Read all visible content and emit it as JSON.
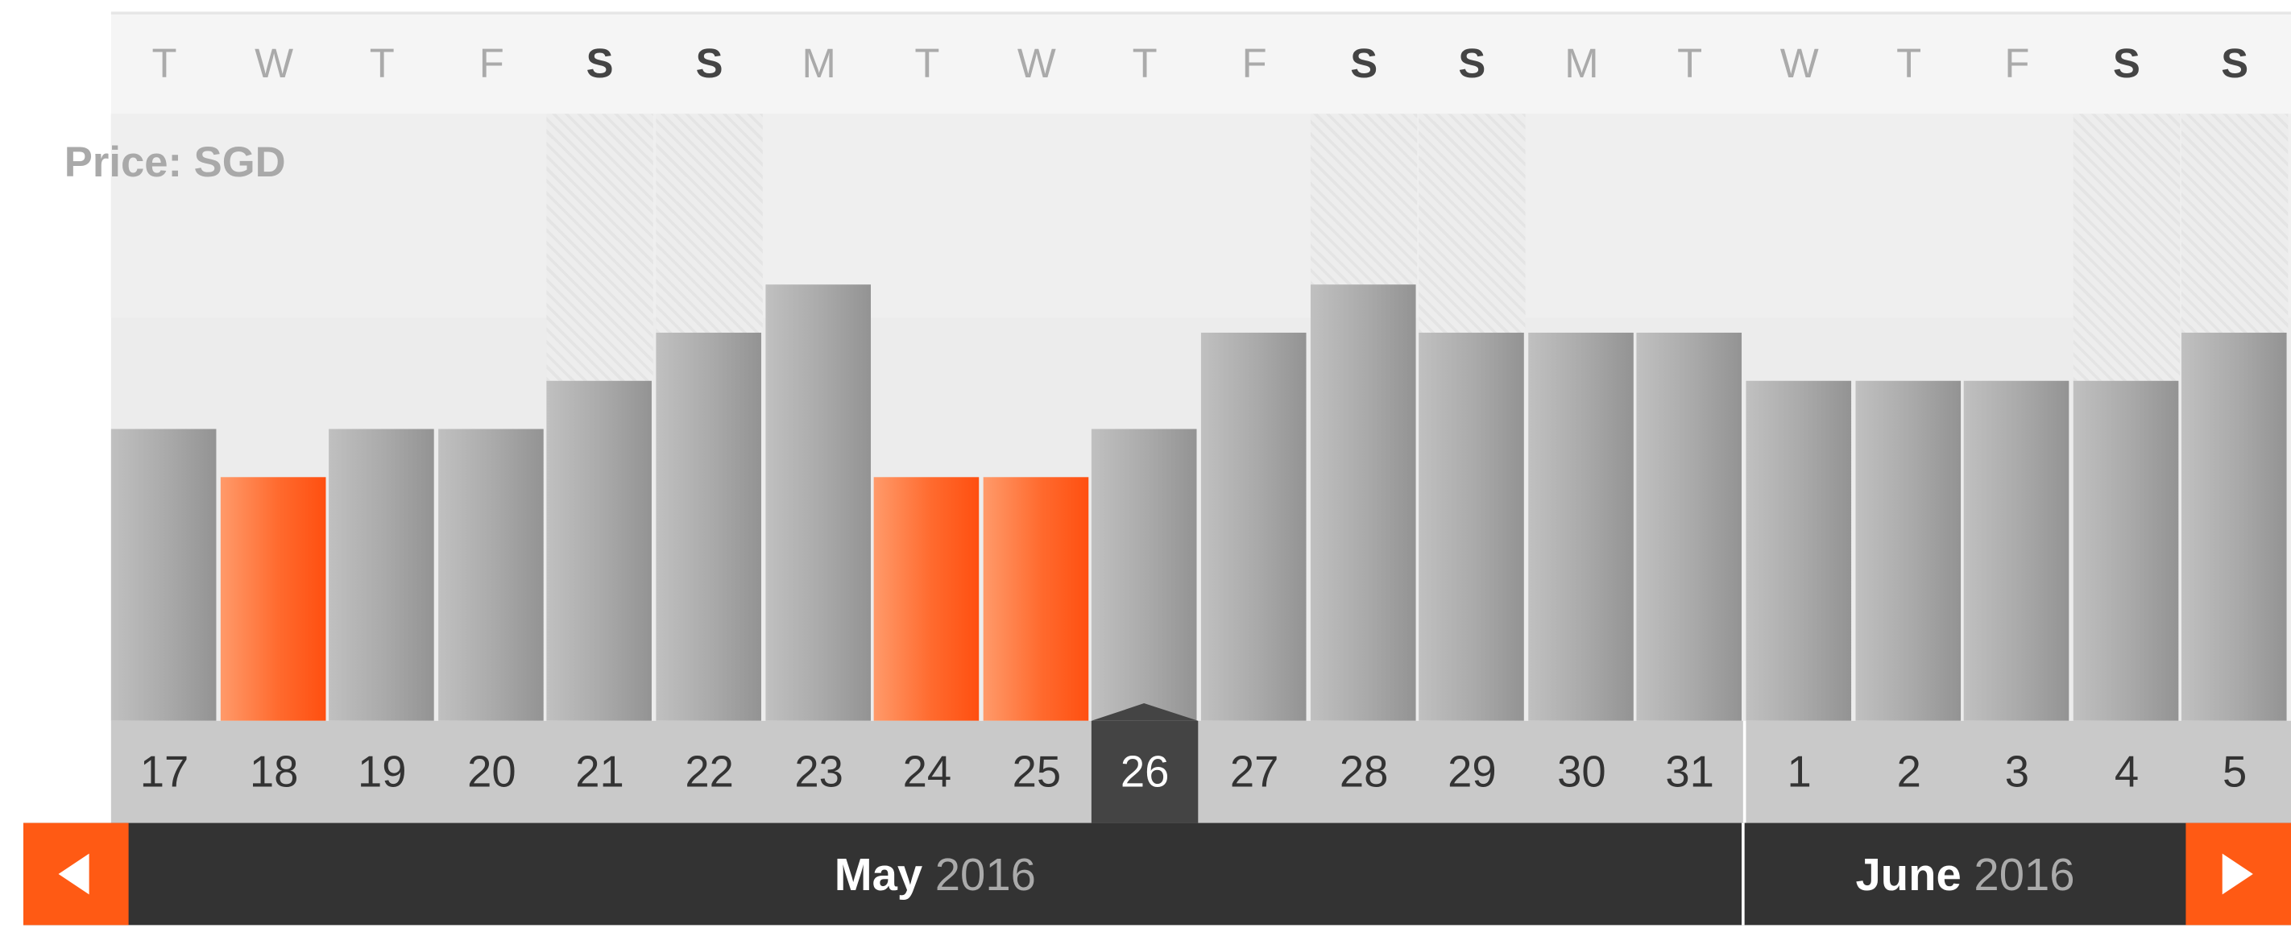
{
  "price_label": "Price: SGD",
  "weekdays": [
    {
      "label": "T",
      "weekend": false
    },
    {
      "label": "W",
      "weekend": false
    },
    {
      "label": "T",
      "weekend": false
    },
    {
      "label": "F",
      "weekend": false
    },
    {
      "label": "S",
      "weekend": true
    },
    {
      "label": "S",
      "weekend": true
    },
    {
      "label": "M",
      "weekend": false
    },
    {
      "label": "T",
      "weekend": false
    },
    {
      "label": "W",
      "weekend": false
    },
    {
      "label": "T",
      "weekend": false
    },
    {
      "label": "F",
      "weekend": false
    },
    {
      "label": "S",
      "weekend": true
    },
    {
      "label": "S",
      "weekend": true
    },
    {
      "label": "M",
      "weekend": false
    },
    {
      "label": "T",
      "weekend": false
    },
    {
      "label": "W",
      "weekend": false
    },
    {
      "label": "T",
      "weekend": false
    },
    {
      "label": "F",
      "weekend": false
    },
    {
      "label": "S",
      "weekend": true
    },
    {
      "label": "S",
      "weekend": true
    }
  ],
  "dates": [
    "17",
    "18",
    "19",
    "20",
    "21",
    "22",
    "23",
    "24",
    "25",
    "26",
    "27",
    "28",
    "29",
    "30",
    "31",
    "1",
    "2",
    "3",
    "4",
    "5"
  ],
  "selected_date": "26",
  "bars": [
    {
      "level": 3,
      "cheap": false
    },
    {
      "level": 2,
      "cheap": true
    },
    {
      "level": 3,
      "cheap": false
    },
    {
      "level": 3,
      "cheap": false
    },
    {
      "level": 4,
      "cheap": false
    },
    {
      "level": 5,
      "cheap": false
    },
    {
      "level": 6,
      "cheap": false
    },
    {
      "level": 2,
      "cheap": true
    },
    {
      "level": 2,
      "cheap": true
    },
    {
      "level": 3,
      "cheap": false
    },
    {
      "level": 5,
      "cheap": false
    },
    {
      "level": 6,
      "cheap": false
    },
    {
      "level": 5,
      "cheap": false
    },
    {
      "level": 5,
      "cheap": false
    },
    {
      "level": 5,
      "cheap": false
    },
    {
      "level": 4,
      "cheap": false
    },
    {
      "level": 4,
      "cheap": false
    },
    {
      "level": 4,
      "cheap": false
    },
    {
      "level": 4,
      "cheap": false
    },
    {
      "level": 5,
      "cheap": false
    }
  ],
  "months": [
    {
      "name": "May",
      "year": "2016"
    },
    {
      "name": "June",
      "year": "2016"
    }
  ],
  "nav": {
    "prev_icon": "arrow-left-icon",
    "next_icon": "arrow-right-icon"
  },
  "colors": {
    "accent": "#ff5a14",
    "bar_gray": "#a9a9a9",
    "dark": "#333333"
  }
}
